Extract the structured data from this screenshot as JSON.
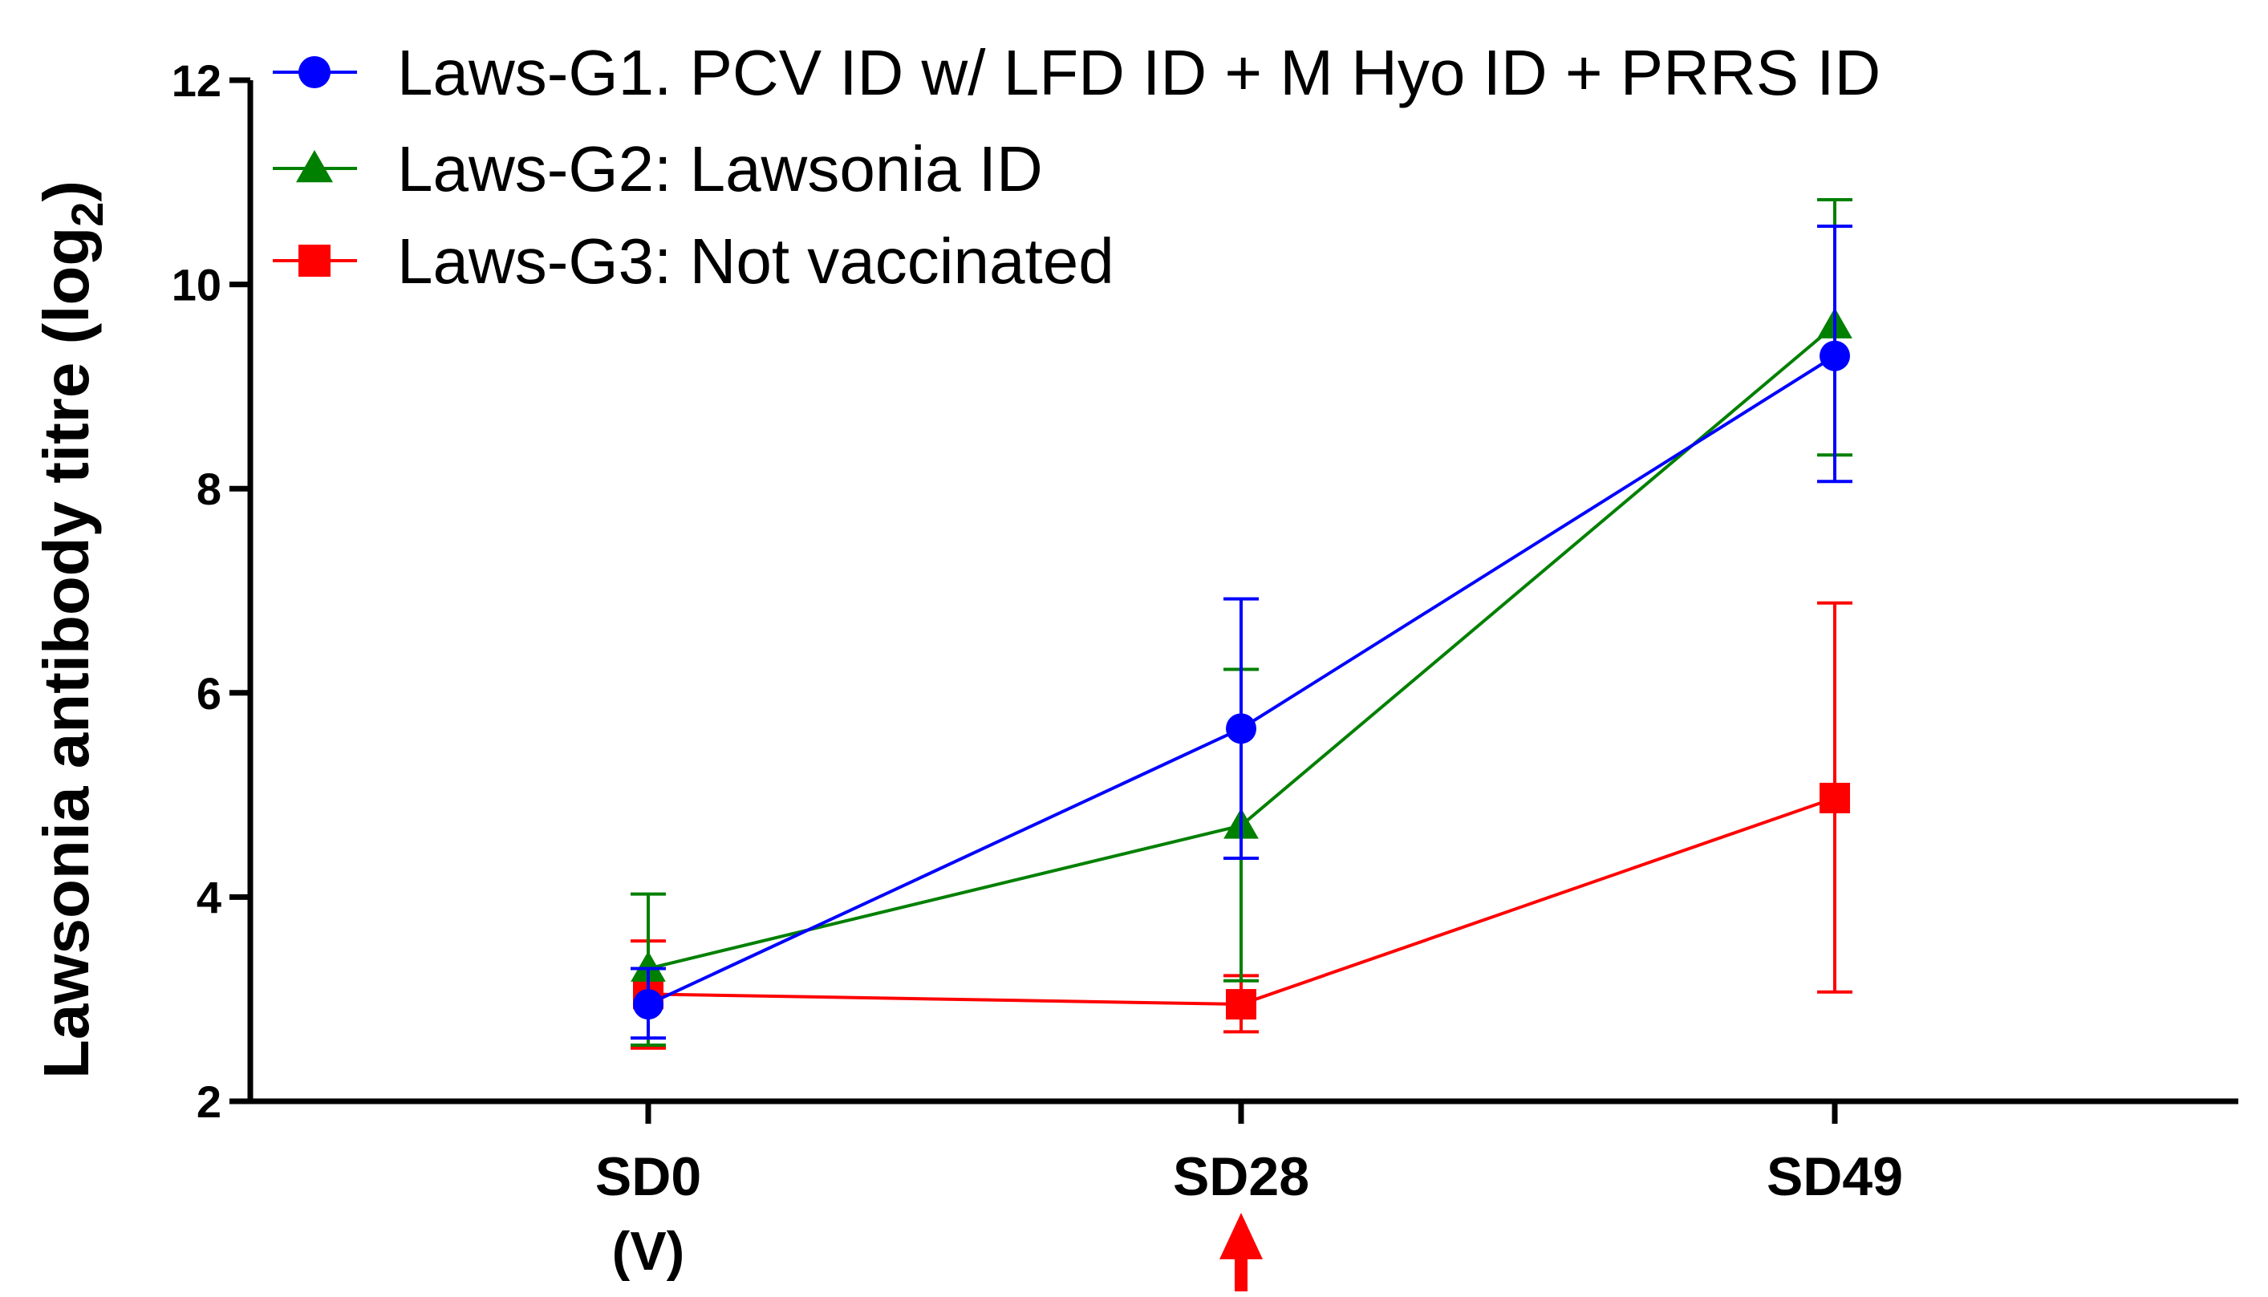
{
  "chart_data": {
    "type": "line",
    "title": "",
    "xlabel": "",
    "ylabel": "Lawsonia antibody titre (log",
    "ylabel_subscript": "2",
    "ylabel_suffix": ")",
    "ylim": [
      2,
      12
    ],
    "yticks": [
      "2",
      "4",
      "6",
      "8",
      "10",
      "12"
    ],
    "categories": [
      {
        "line1": "SD0",
        "line2": "(V)"
      },
      {
        "line1": "SD28",
        "line2": ""
      },
      {
        "line1": "SD49",
        "line2": ""
      }
    ],
    "series": [
      {
        "name": "Laws-G1. PCV ID w/ LFD ID + M Hyo ID + PRRS ID",
        "color": "#0000ff",
        "marker": "circle",
        "values": [
          2.95,
          5.65,
          9.3
        ],
        "err_low": [
          2.62,
          4.38,
          8.07
        ],
        "err_high": [
          3.3,
          6.92,
          10.57
        ]
      },
      {
        "name": "Laws-G2: Lawsonia ID",
        "color": "#008000",
        "marker": "triangle",
        "values": [
          3.3,
          4.7,
          9.6
        ],
        "err_low": [
          2.55,
          3.18,
          8.33
        ],
        "err_high": [
          4.03,
          6.23,
          10.83
        ]
      },
      {
        "name": "Laws-G3: Not vaccinated",
        "color": "#ff0000",
        "marker": "square",
        "values": [
          3.05,
          2.95,
          4.97
        ],
        "err_low": [
          2.52,
          2.68,
          3.07
        ],
        "err_high": [
          3.57,
          3.23,
          6.88
        ]
      }
    ],
    "annotation": {
      "type": "arrow",
      "at_category": "SD28",
      "color": "#ff0000"
    },
    "legend_position": "top-left"
  }
}
